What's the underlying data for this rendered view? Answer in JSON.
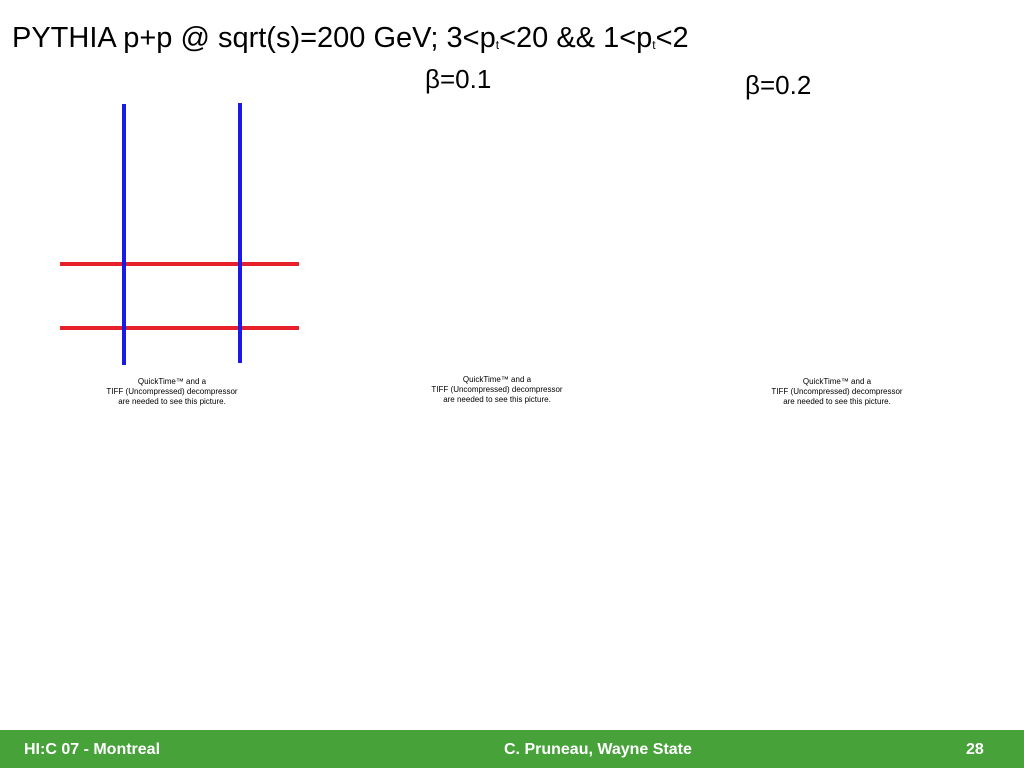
{
  "title": {
    "parts": [
      "PYTHIA p+p @ sqrt(s)=200 GeV; 3<p",
      "t",
      "<20 && 1<p",
      "t",
      "<2"
    ]
  },
  "labels": [
    "β=0.1",
    "β=0.2"
  ],
  "placeholders": [
    [
      "QuickTime™ and a",
      "TIFF (Uncompressed) decompressor",
      "are needed to see this picture."
    ],
    [
      "QuickTime™ and a",
      "TIFF (Uncompressed) decompressor",
      "are needed to see this picture."
    ],
    [
      "QuickTime™ and a",
      "TIFF (Uncompressed) decompressor",
      "are needed to see this picture."
    ]
  ],
  "footer": {
    "left": "HI:C 07 - Montreal",
    "center": "C. Pruneau, Wayne State",
    "right": "28"
  }
}
